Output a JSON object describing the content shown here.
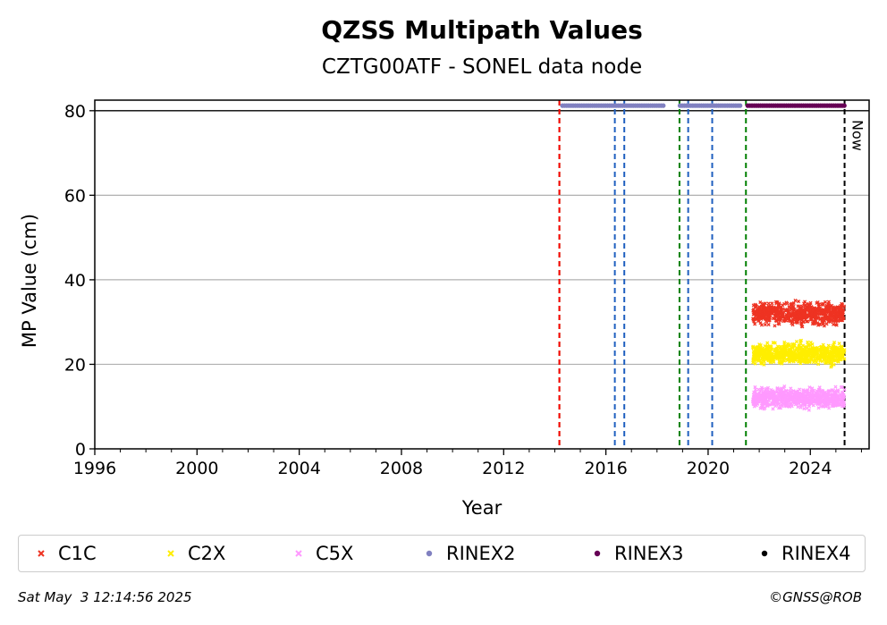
{
  "chart_data": {
    "type": "scatter",
    "title": "QZSS Multipath Values",
    "subtitle": "CZTG00ATF - SONEL data node",
    "xlabel": "Year",
    "ylabel": "MP Value (cm)",
    "xlim": [
      1996,
      2026.3
    ],
    "ylim": [
      0,
      82.5
    ],
    "x_ticks": [
      "1996",
      "2000",
      "2004",
      "2008",
      "2012",
      "2016",
      "2020",
      "2024"
    ],
    "y_ticks": [
      "0",
      "20",
      "40",
      "60",
      "80"
    ],
    "grid": "horizontal",
    "reference_line_y": 80,
    "now_label": "Now",
    "now_year": 2025.34,
    "vertical_lines": [
      {
        "x": 2014.18,
        "color": "#008000"
      },
      {
        "x": 2014.18,
        "color": "#ff0000"
      },
      {
        "x": 2016.35,
        "color": "#1f5fbf"
      },
      {
        "x": 2016.72,
        "color": "#1f5fbf"
      },
      {
        "x": 2018.88,
        "color": "#008000"
      },
      {
        "x": 2019.22,
        "color": "#1f5fbf"
      },
      {
        "x": 2020.16,
        "color": "#1f5fbf"
      },
      {
        "x": 2021.48,
        "color": "#008000"
      },
      {
        "x": 2025.34,
        "color": "#000000"
      }
    ],
    "series": [
      {
        "name": "C1C",
        "marker": "x",
        "color": "#ee3322",
        "x_range": [
          2021.75,
          2025.34
        ],
        "mean": 32,
        "spread": 2
      },
      {
        "name": "C2X",
        "marker": "x",
        "color": "#ffee00",
        "x_range": [
          2021.75,
          2025.34
        ],
        "mean": 22.5,
        "spread": 2
      },
      {
        "name": "C5X",
        "marker": "x",
        "color": "#ff99ff",
        "x_range": [
          2021.75,
          2025.34
        ],
        "mean": 12,
        "spread": 1.8
      },
      {
        "name": "RINEX2",
        "marker": "dot",
        "color": "#8080c0",
        "y": 81.2,
        "segments": [
          [
            2014.3,
            2018.3
          ],
          [
            2018.9,
            2021.3
          ]
        ]
      },
      {
        "name": "RINEX3",
        "marker": "dot",
        "color": "#660055",
        "y": 81.2,
        "segments": [
          [
            2021.55,
            2025.34
          ]
        ]
      },
      {
        "name": "RINEX4",
        "marker": "dot",
        "color": "#000000",
        "y": 81.2,
        "segments": []
      }
    ]
  },
  "legend": {
    "items": [
      {
        "label": "C1C",
        "color": "#ee3322",
        "marker": "x"
      },
      {
        "label": "C2X",
        "color": "#ffee00",
        "marker": "x"
      },
      {
        "label": "C5X",
        "color": "#ff99ff",
        "marker": "x"
      },
      {
        "label": "RINEX2",
        "color": "#8080c0",
        "marker": "dot"
      },
      {
        "label": "RINEX3",
        "color": "#660055",
        "marker": "dot"
      },
      {
        "label": "RINEX4",
        "color": "#000000",
        "marker": "dot"
      }
    ]
  },
  "footer": {
    "timestamp": "Sat May  3 12:14:56 2025",
    "credit": "©GNSS@ROB"
  }
}
